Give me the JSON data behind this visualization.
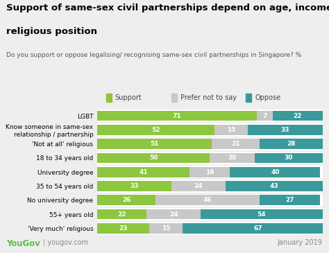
{
  "title_line1": "Support of same-sex civil partnerships depend on age, income and",
  "title_line2": "religious position",
  "subtitle": "Do you support or oppose legalising/ recognising same-sex civil partnerships in Singapore? %",
  "categories": [
    "LGBT",
    "Know someone in same-sex\nrelationship / partnership",
    "'Not at all' religious",
    "18 to 34 years old",
    "University degree",
    "35 to 54 years old",
    "No university degree",
    "55+ years old",
    "'Very much' religious"
  ],
  "support": [
    71,
    52,
    51,
    50,
    41,
    33,
    26,
    22,
    23
  ],
  "prefer_not": [
    7,
    15,
    21,
    20,
    18,
    24,
    46,
    24,
    15
  ],
  "oppose": [
    22,
    33,
    28,
    30,
    40,
    43,
    27,
    54,
    67
  ],
  "support_color": "#8DC63F",
  "prefer_color": "#C8C8C8",
  "oppose_color": "#3A9A9A",
  "title_fontsize": 9.5,
  "subtitle_fontsize": 6.5,
  "bar_label_fontsize": 6.5,
  "legend_fontsize": 7,
  "category_fontsize": 6.5,
  "background_color": "#EEEEEE",
  "bar_area_bg": "#FFFFFF",
  "yougov_color": "#5BBF47",
  "footer_text": "January 2019",
  "legend_entries": [
    "Support",
    "Prefer not to say",
    "Oppose"
  ]
}
